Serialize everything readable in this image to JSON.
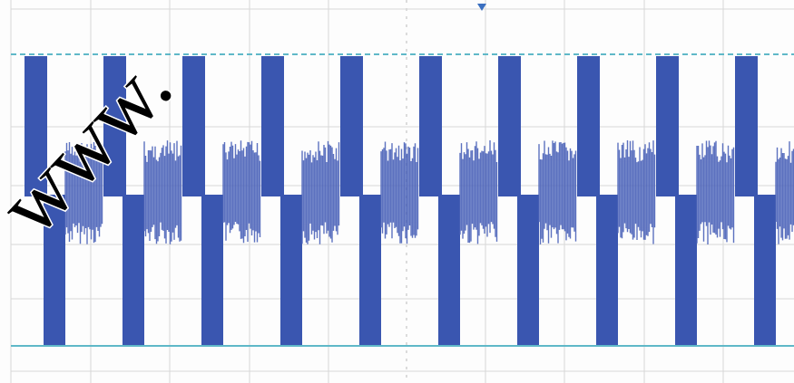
{
  "watermark": "www."
}
